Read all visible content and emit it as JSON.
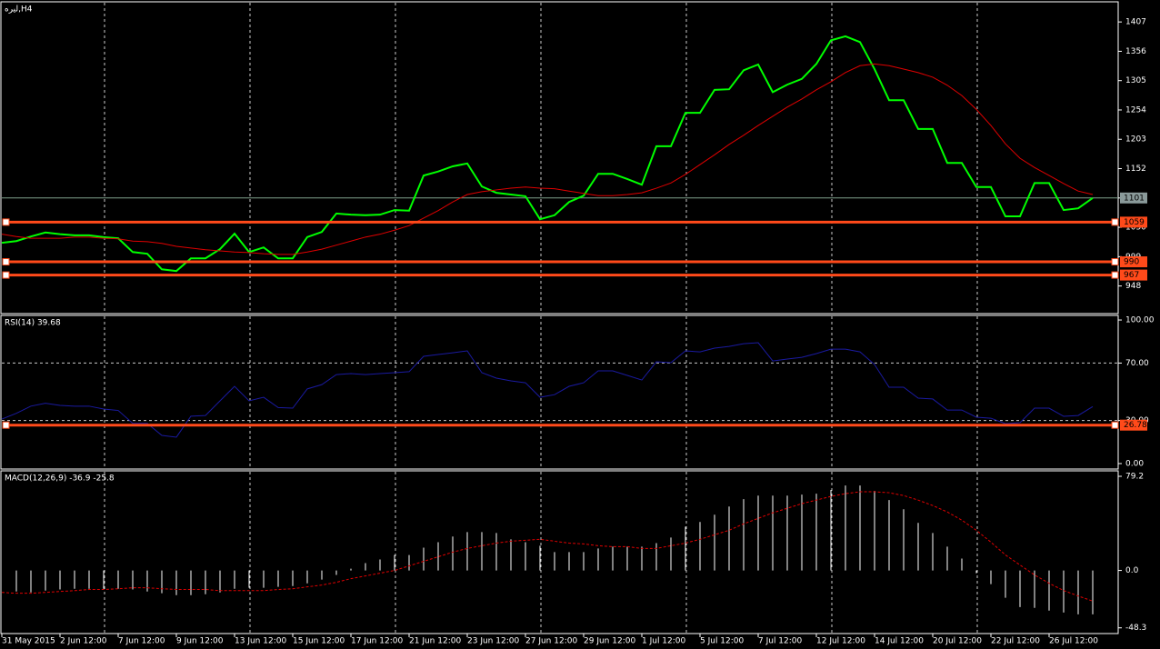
{
  "chart_data": [
    {
      "type": "line",
      "title": "لیره,H4",
      "ylim": [
        900,
        1442
      ],
      "yticks": [
        948,
        999,
        1050,
        1101,
        1152,
        1203,
        1254,
        1305,
        1356,
        1407
      ],
      "series": [
        {
          "type": "line",
          "color": "#00ff00",
          "values": [
            1023,
            1026,
            1034,
            1041,
            1038,
            1036,
            1036,
            1033,
            1031,
            1007,
            1004,
            977,
            974,
            996,
            996,
            1012,
            1039,
            1007,
            1015,
            996,
            996,
            1033,
            1042,
            1074,
            1072,
            1071,
            1072,
            1080,
            1079,
            1140,
            1147,
            1156,
            1161,
            1121,
            1110,
            1107,
            1104,
            1064,
            1071,
            1094,
            1105,
            1143,
            1143,
            1134,
            1124,
            1191,
            1191,
            1249,
            1249,
            1289,
            1290,
            1323,
            1333,
            1285,
            1298,
            1308,
            1334,
            1375,
            1382,
            1372,
            1325,
            1271,
            1271,
            1221,
            1221,
            1162,
            1162,
            1120,
            1120,
            1069,
            1069,
            1127,
            1127,
            1080,
            1083,
            1101
          ]
        },
        {
          "type": "line",
          "color": "#e00000",
          "values": [
            1038,
            1034,
            1031,
            1031,
            1031,
            1033,
            1033,
            1031,
            1030,
            1026,
            1025,
            1022,
            1017,
            1014,
            1011,
            1009,
            1007,
            1006,
            1004,
            1003,
            1003,
            1007,
            1012,
            1019,
            1026,
            1033,
            1038,
            1045,
            1053,
            1066,
            1079,
            1094,
            1107,
            1112,
            1115,
            1118,
            1120,
            1118,
            1117,
            1113,
            1109,
            1105,
            1105,
            1107,
            1110,
            1118,
            1127,
            1142,
            1159,
            1176,
            1194,
            1210,
            1227,
            1243,
            1259,
            1273,
            1289,
            1303,
            1319,
            1331,
            1334,
            1331,
            1325,
            1319,
            1311,
            1297,
            1279,
            1255,
            1227,
            1195,
            1170,
            1154,
            1140,
            1126,
            1113,
            1107
          ]
        }
      ],
      "hlines": [
        1059,
        990,
        967
      ],
      "hline_color": "#ff4a1a",
      "bid_line_color": "#7fa08c"
    },
    {
      "type": "line",
      "title": "RSI(14) 39.68",
      "ylim": [
        -3.8,
        103.2
      ],
      "yticks": [
        {
          "value": 0,
          "label": "0.00"
        },
        {
          "value": 30,
          "label": "30.00"
        },
        {
          "value": 70,
          "label": "70.00"
        },
        {
          "value": 100,
          "label": "100.00"
        }
      ],
      "grid": true,
      "series": [
        {
          "type": "line",
          "color": "#1a1aa0",
          "values": [
            31,
            35,
            40,
            42,
            40.5,
            40,
            40,
            38,
            37,
            28,
            28,
            19.6,
            18.4,
            33,
            33.5,
            43.7,
            53.8,
            43.7,
            46.2,
            39,
            38.6,
            52,
            55,
            62,
            62.7,
            62,
            62.7,
            63.3,
            64,
            74.7,
            76,
            77.2,
            78.5,
            63.3,
            59.5,
            57.6,
            56.3,
            46.2,
            48,
            53.8,
            56.3,
            64.6,
            64.6,
            61.4,
            58.2,
            70.9,
            70.3,
            78.5,
            77.8,
            80.4,
            81.6,
            83.5,
            84.2,
            71.5,
            72.8,
            74,
            76.6,
            79.7,
            79.7,
            77.8,
            69,
            53.2,
            53.2,
            45.6,
            45,
            37.3,
            37.3,
            32.3,
            31.6,
            27.8,
            28.5,
            38.6,
            38.6,
            32.9,
            33.5,
            39.68
          ]
        }
      ],
      "hlines": [
        26.78
      ],
      "hline_color": "#ff4a1a"
    },
    {
      "type": "bar",
      "title": "MACD(12,26,9) -36.9 -25.8",
      "ylim": [
        -53.1,
        83.8
      ],
      "yticks": [
        -48.3,
        {
          "value": 0,
          "label": "0.0"
        },
        79.2
      ],
      "series": [
        {
          "type": "histogram",
          "color": "#ffffff",
          "values": [
            null,
            -17.7,
            -18.5,
            -17,
            -16,
            -15.4,
            -15.4,
            -15.4,
            -15.4,
            -16,
            -17.7,
            -19.2,
            -20.8,
            -20.8,
            -20,
            -18.5,
            -15.4,
            -14.6,
            -14.6,
            -13.8,
            -13.1,
            -10.8,
            -7.7,
            -3.8,
            1.5,
            6.2,
            9.2,
            13,
            13,
            19.2,
            23.8,
            28.5,
            32.3,
            32.3,
            31.5,
            26.2,
            23.8,
            20.8,
            15.4,
            15.4,
            15.4,
            18.5,
            20,
            20,
            20,
            23,
            27.7,
            36.9,
            40.8,
            46.9,
            53.8,
            60,
            63,
            63,
            63,
            63.8,
            64.6,
            67.7,
            71.5,
            71.5,
            66.9,
            59.2,
            51.5,
            40,
            31.5,
            20,
            10,
            -2.3,
            -11.5,
            -23,
            -30.8,
            -31.5,
            -33.8,
            -35.4,
            -36.9,
            -36.9
          ]
        },
        {
          "type": "dashed",
          "color": "#e00000",
          "values": [
            -18.5,
            -19.2,
            -19.2,
            -18.5,
            -17.7,
            -17,
            -16,
            -16,
            -15.4,
            -14.6,
            -14.6,
            -15.4,
            -16,
            -16,
            -16,
            -17,
            -17,
            -17,
            -17,
            -16,
            -15.4,
            -13.8,
            -12.3,
            -10,
            -6.9,
            -4.6,
            -2.3,
            0,
            3.8,
            7.7,
            11.5,
            15.4,
            18.5,
            20.8,
            23,
            24.6,
            25.4,
            26.2,
            24.6,
            23,
            22.3,
            20.8,
            20,
            20,
            18.5,
            18.5,
            20.8,
            23,
            26.2,
            30,
            33.8,
            39.2,
            43.8,
            48.5,
            52.3,
            56.2,
            59.2,
            62.3,
            64.6,
            66.2,
            66.2,
            65.4,
            63,
            59.2,
            54.6,
            49.2,
            42.3,
            33.8,
            23.8,
            13,
            4.6,
            -3.8,
            -10.8,
            -16.9,
            -21.5,
            -25.8
          ]
        }
      ],
      "categories": [
        "31 May 2015",
        null,
        null,
        null,
        "2 Jun 12:00",
        null,
        null,
        null,
        "7 Jun 12:00",
        null,
        null,
        null,
        "9 Jun 12:00",
        null,
        null,
        null,
        "13 Jun 12:00",
        null,
        null,
        null,
        "15 Jun 12:00",
        null,
        null,
        null,
        "17 Jun 12:00",
        null,
        null,
        null,
        "21 Jun 12:00",
        null,
        null,
        null,
        "23 Jun 12:00",
        null,
        null,
        null,
        "27 Jun 12:00",
        null,
        null,
        null,
        "29 Jun 12:00",
        null,
        null,
        null,
        "1 Jul 12:00",
        null,
        null,
        null,
        "5 Jul 12:00",
        null,
        null,
        null,
        "7 Jul 12:00",
        null,
        null,
        null,
        "12 Jul 12:00",
        null,
        null,
        null,
        "14 Jul 12:00",
        null,
        null,
        null,
        "20 Jul 12:00",
        null,
        null,
        null,
        "22 Jul 12:00",
        null,
        null,
        null,
        "26 Jul 12:00",
        null,
        null,
        null
      ]
    }
  ]
}
